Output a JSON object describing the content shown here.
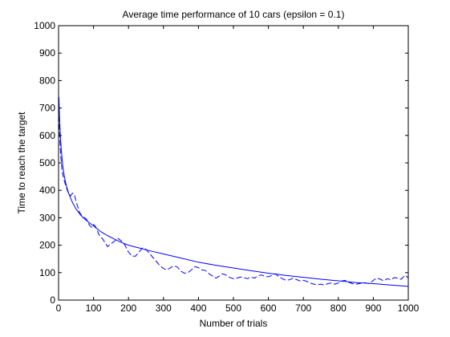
{
  "chart_data": {
    "type": "line",
    "title": "Average time performance of 10 cars (epsilon = 0.1)",
    "xlabel": "Number of trials",
    "ylabel": "Time to reach the target",
    "xlim": [
      0,
      1000
    ],
    "ylim": [
      0,
      1000
    ],
    "xticks": [
      0,
      100,
      200,
      300,
      400,
      500,
      600,
      700,
      800,
      900,
      1000
    ],
    "yticks": [
      0,
      100,
      200,
      300,
      400,
      500,
      600,
      700,
      800,
      900,
      1000
    ],
    "grid": false,
    "legend": "none",
    "line_color": "#0000ff",
    "series": [
      {
        "style": "solid",
        "x": [
          1,
          3,
          5,
          8,
          12,
          16,
          20,
          25,
          30,
          40,
          50,
          60,
          70,
          80,
          90,
          100,
          120,
          140,
          160,
          180,
          200,
          230,
          260,
          300,
          350,
          400,
          450,
          500,
          550,
          600,
          650,
          700,
          750,
          800,
          850,
          900,
          950,
          1000
        ],
        "y": [
          740,
          660,
          600,
          545,
          490,
          455,
          430,
          405,
          385,
          355,
          332,
          315,
          300,
          290,
          280,
          270,
          250,
          235,
          222,
          210,
          200,
          190,
          180,
          168,
          153,
          138,
          127,
          117,
          107,
          98,
          90,
          83,
          76,
          70,
          64,
          60,
          55,
          50
        ]
      },
      {
        "style": "dashed",
        "x": [
          1,
          3,
          6,
          10,
          15,
          20,
          25,
          30,
          35,
          40,
          45,
          50,
          55,
          60,
          65,
          70,
          75,
          80,
          85,
          90,
          95,
          100,
          105,
          110,
          115,
          120,
          125,
          130,
          135,
          140,
          145,
          150,
          160,
          170,
          180,
          190,
          200,
          210,
          220,
          230,
          240,
          250,
          260,
          270,
          280,
          290,
          300,
          310,
          320,
          330,
          340,
          350,
          360,
          370,
          380,
          390,
          400,
          410,
          420,
          430,
          440,
          450,
          460,
          470,
          480,
          490,
          500,
          510,
          520,
          530,
          540,
          550,
          560,
          570,
          580,
          590,
          600,
          610,
          620,
          630,
          640,
          650,
          660,
          670,
          680,
          690,
          700,
          710,
          720,
          730,
          740,
          750,
          760,
          770,
          780,
          790,
          800,
          810,
          820,
          830,
          840,
          850,
          860,
          870,
          880,
          890,
          900,
          910,
          920,
          930,
          940,
          950,
          960,
          970,
          980,
          990,
          1000
        ],
        "y": [
          700,
          600,
          530,
          470,
          440,
          420,
          400,
          385,
          380,
          390,
          385,
          360,
          340,
          320,
          310,
          305,
          300,
          295,
          280,
          270,
          265,
          275,
          270,
          255,
          240,
          230,
          225,
          215,
          205,
          195,
          200,
          205,
          215,
          225,
          215,
          200,
          175,
          160,
          160,
          175,
          190,
          185,
          170,
          155,
          140,
          125,
          115,
          110,
          118,
          125,
          120,
          105,
          98,
          100,
          110,
          122,
          118,
          110,
          108,
          96,
          88,
          80,
          88,
          96,
          90,
          82,
          78,
          80,
          84,
          82,
          78,
          84,
          80,
          88,
          92,
          86,
          85,
          90,
          96,
          85,
          78,
          72,
          74,
          80,
          75,
          70,
          72,
          68,
          62,
          58,
          56,
          58,
          55,
          60,
          62,
          58,
          62,
          70,
          72,
          65,
          60,
          58,
          60,
          64,
          62,
          60,
          72,
          80,
          76,
          70,
          78,
          74,
          82,
          80,
          76,
          90,
          82
        ]
      }
    ]
  }
}
